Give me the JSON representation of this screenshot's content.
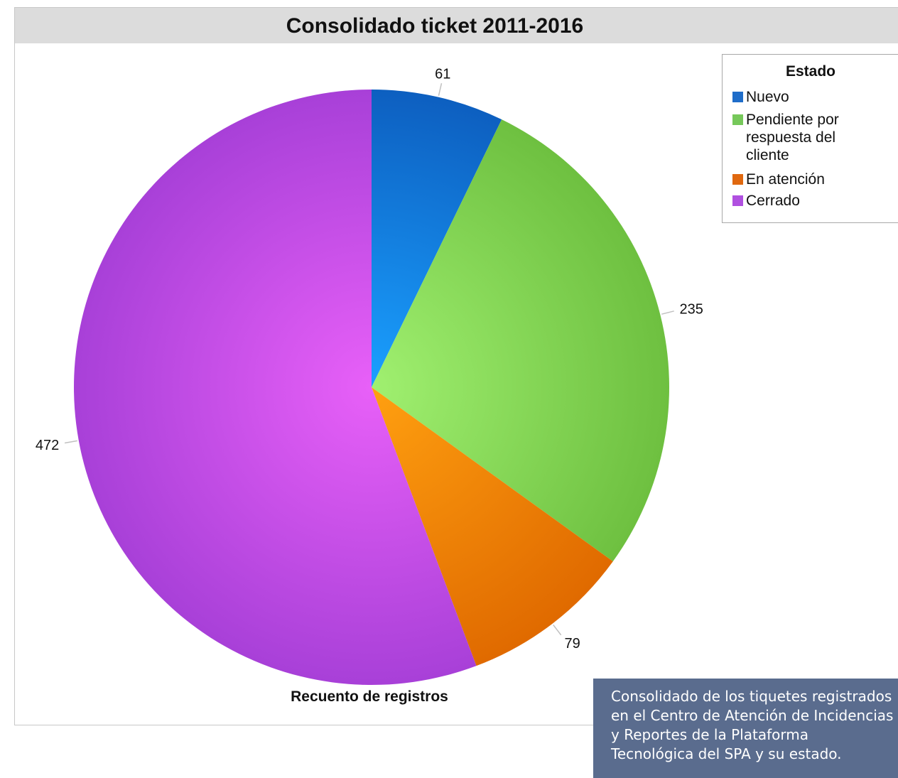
{
  "caption": "Consolidado de los tiquetes registrados\nen el Centro de Atención de Incidencias\ny Reportes de la Plataforma\nTecnológica del SPA y su estado.",
  "chart_data": {
    "type": "pie",
    "title": "Consolidado ticket 2011-2016",
    "xlabel": "Recuento de registros",
    "legend_title": "Estado",
    "legend_position": "top-right",
    "categories": [
      "Nuevo",
      "Pendiente por respuesta del cliente",
      "En atención",
      "Cerrado"
    ],
    "values": [
      61,
      235,
      79,
      472
    ],
    "colors": [
      "#1a7fe0",
      "#8ad85a",
      "#f08a10",
      "#c44ee8"
    ],
    "legend_colors": [
      "#1f6dc9",
      "#76c85a",
      "#e0680f",
      "#b050e0"
    ],
    "gradient_inner": [
      "#1aa0ff",
      "#a0f070",
      "#ffa010",
      "#e860f8"
    ],
    "gradient_outer": [
      "#0d5fc0",
      "#6ec040",
      "#e06a00",
      "#a840d8"
    ],
    "start_angle_deg": 0,
    "direction": "clockwise",
    "data_labels": true
  }
}
